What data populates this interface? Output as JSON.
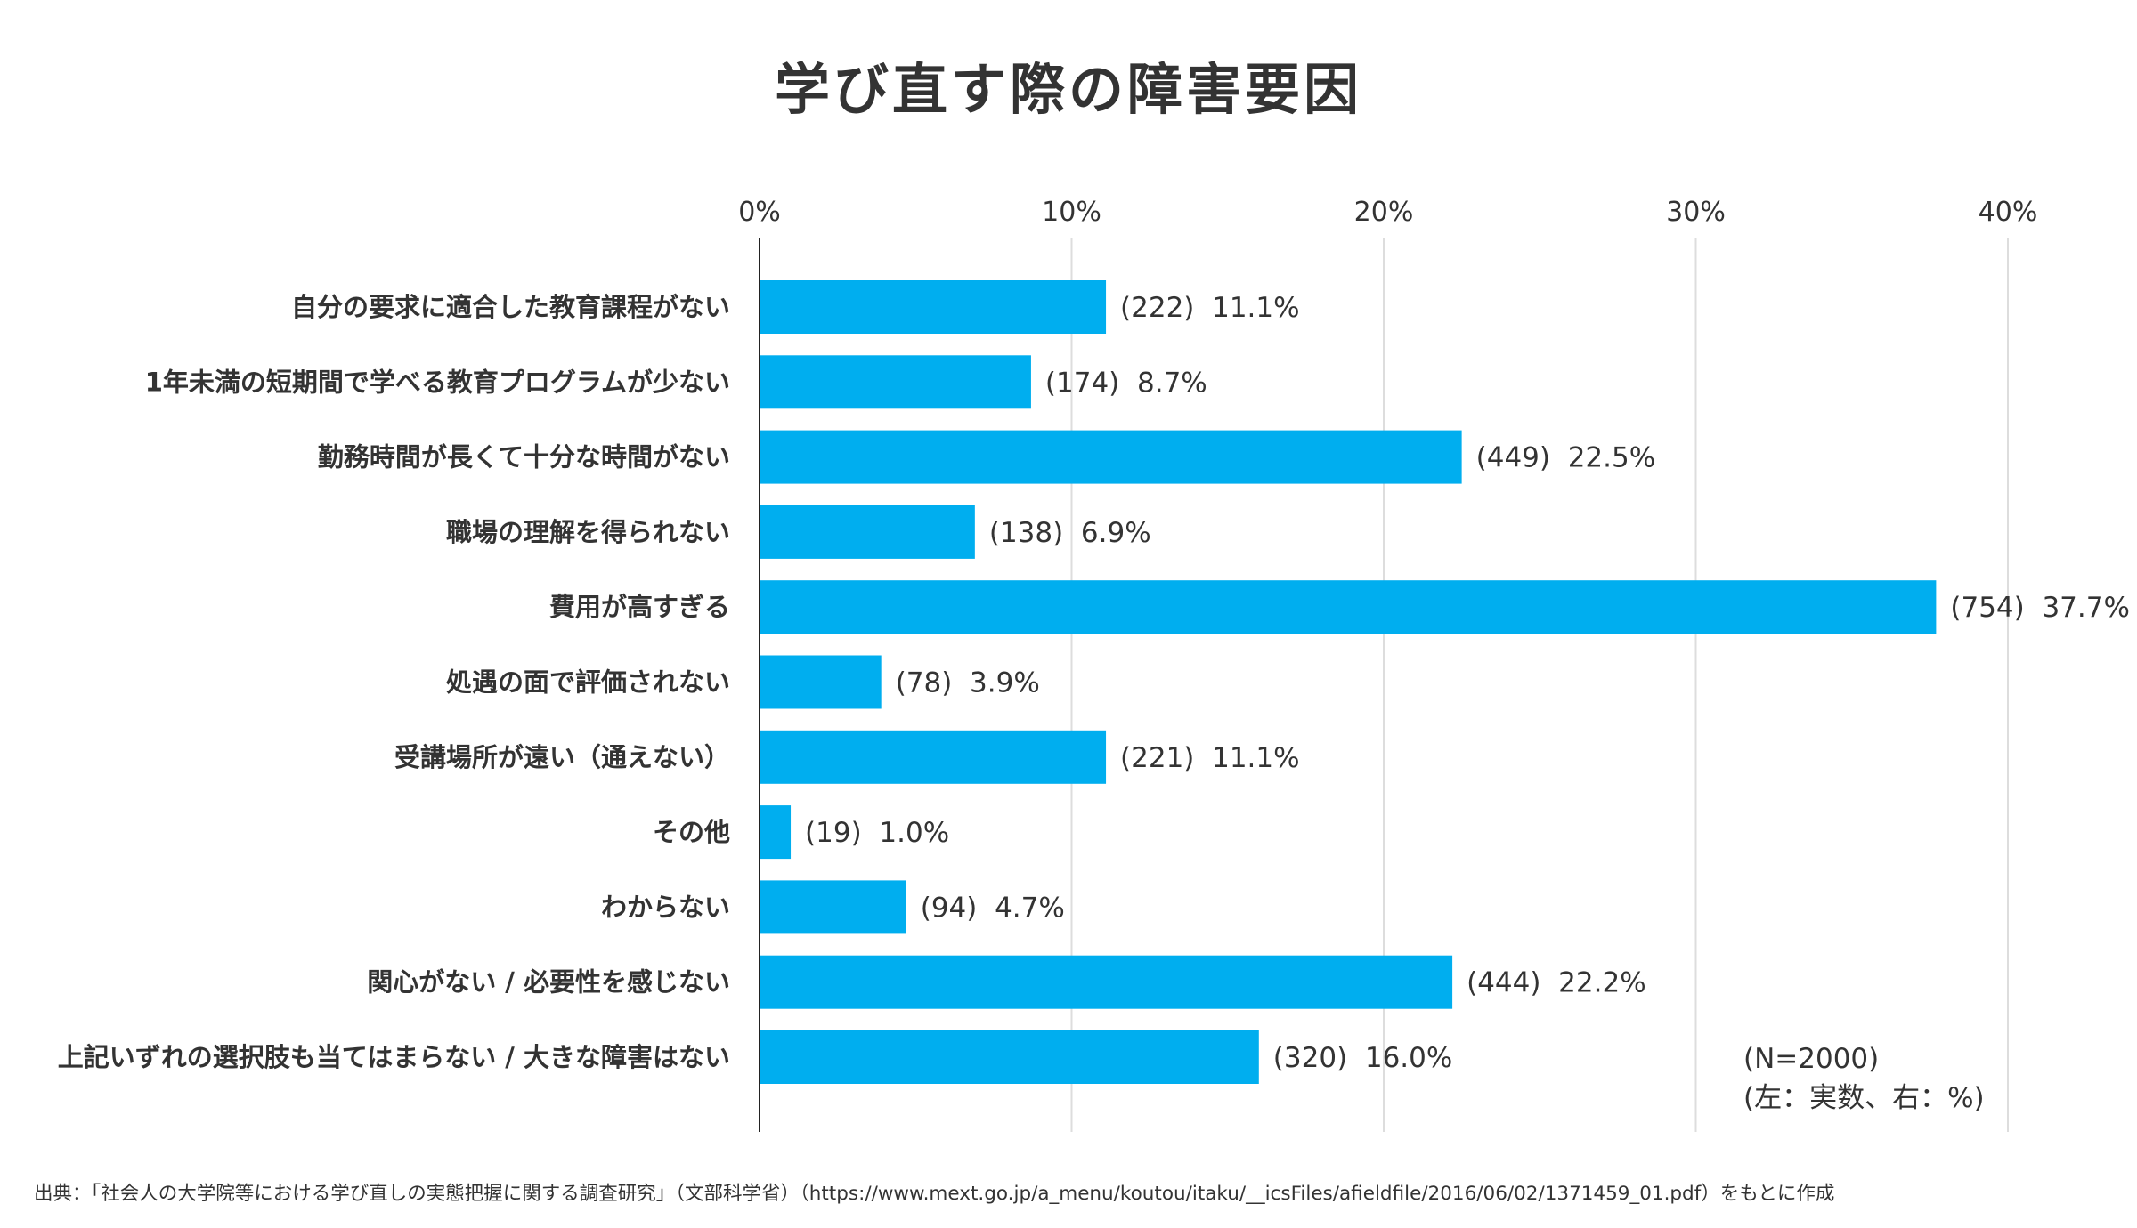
{
  "chart_data": {
    "type": "bar",
    "orientation": "horizontal",
    "title": "学び直す際の障害要因",
    "x_ticks": [
      "0%",
      "10%",
      "20%",
      "30%",
      "40%"
    ],
    "xlim": [
      0,
      40
    ],
    "grid": true,
    "bar_color": "#00AEEF",
    "categories": [
      "自分の要求に適合した教育課程がない",
      "1年未満の短期間で学べる教育プログラムが少ない",
      "勤務時間が長くて十分な時間がない",
      "職場の理解を得られない",
      "費用が高すぎる",
      "処遇の面で評価されない",
      "受講場所が遠い（通えない）",
      "その他",
      "わからない",
      "関心がない / 必要性を感じない",
      "上記いずれの選択肢も当てはまらない / 大きな障害はない"
    ],
    "values": [
      11.1,
      8.7,
      22.5,
      6.9,
      37.7,
      3.9,
      11.1,
      1.0,
      4.7,
      22.2,
      16.0
    ],
    "counts": [
      222,
      174,
      449,
      138,
      754,
      78,
      221,
      19,
      94,
      444,
      320
    ],
    "value_labels": [
      "(222)  11.1%",
      "(174)  8.7%",
      "(449)  22.5%",
      "(138)  6.9%",
      "(754)  37.7%",
      "(78)  3.9%",
      "(221)  11.1%",
      "(19)  1.0%",
      "(94)  4.7%",
      "(444)  22.2%",
      "(320)  16.0%"
    ],
    "note_lines": [
      "(N=2000)",
      "(左：実数、右：%)"
    ],
    "source": "出典：「社会人の大学院等における学び直しの実態把握に関する調査研究」（文部科学省）（https://www.mext.go.jp/a_menu/koutou/itaku/__icsFiles/afieldfile/2016/06/02/1371459_01.pdf）をもとに作成"
  }
}
